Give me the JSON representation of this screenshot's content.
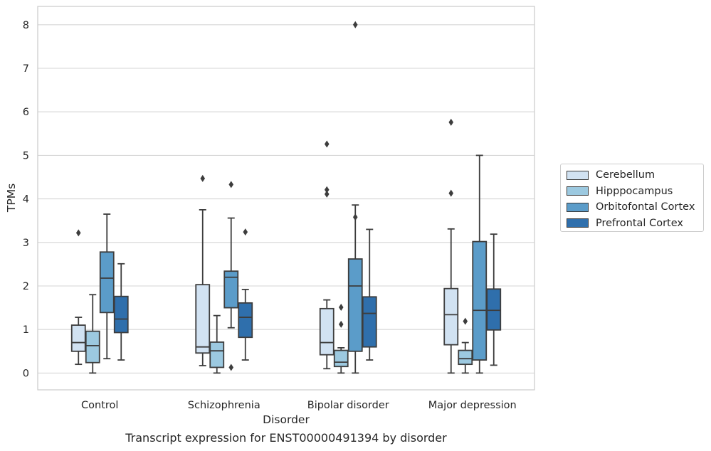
{
  "caption": "Transcript expression for ENST00000491394 by disorder",
  "chart_data": {
    "type": "box",
    "xlabel": "Disorder",
    "ylabel": "TPMs",
    "ylim": [
      -0.4,
      8.4
    ],
    "yticks": [
      0,
      1,
      2,
      3,
      4,
      5,
      6,
      7,
      8
    ],
    "grid": "horizontal",
    "legend_position": "right",
    "categories": [
      "Control",
      "Schizophrenia",
      "Bipolar disorder",
      "Major depression"
    ],
    "series": [
      {
        "name": "Cerebellum",
        "color": "#d1e2f2",
        "boxes": [
          {
            "whisker_low": 0.2,
            "q1": 0.5,
            "median": 0.7,
            "q3": 1.1,
            "whisker_high": 1.28,
            "outliers": [
              3.22
            ]
          },
          {
            "whisker_low": 0.17,
            "q1": 0.46,
            "median": 0.6,
            "q3": 2.03,
            "whisker_high": 3.75,
            "outliers": [
              4.47
            ]
          },
          {
            "whisker_low": 0.1,
            "q1": 0.42,
            "median": 0.7,
            "q3": 1.48,
            "whisker_high": 1.68,
            "outliers": [
              4.11,
              4.21,
              5.26
            ]
          },
          {
            "whisker_low": 0.0,
            "q1": 0.65,
            "median": 1.34,
            "q3": 1.94,
            "whisker_high": 3.31,
            "outliers": [
              4.13,
              5.76
            ]
          }
        ]
      },
      {
        "name": "Hipppocampus",
        "color": "#9cc9e0",
        "boxes": [
          {
            "whisker_low": 0.0,
            "q1": 0.24,
            "median": 0.63,
            "q3": 0.96,
            "whisker_high": 1.8,
            "outliers": []
          },
          {
            "whisker_low": 0.0,
            "q1": 0.13,
            "median": 0.51,
            "q3": 0.71,
            "whisker_high": 1.32,
            "outliers": []
          },
          {
            "whisker_low": 0.0,
            "q1": 0.15,
            "median": 0.25,
            "q3": 0.52,
            "whisker_high": 0.58,
            "outliers": [
              1.12,
              1.51
            ]
          },
          {
            "whisker_low": 0.0,
            "q1": 0.2,
            "median": 0.33,
            "q3": 0.52,
            "whisker_high": 0.7,
            "outliers": [
              1.19
            ]
          }
        ]
      },
      {
        "name": "Orbitofontal Cortex",
        "color": "#5b9cc9",
        "boxes": [
          {
            "whisker_low": 0.33,
            "q1": 1.39,
            "median": 2.18,
            "q3": 2.78,
            "whisker_high": 3.65,
            "outliers": []
          },
          {
            "whisker_low": 1.04,
            "q1": 1.5,
            "median": 2.2,
            "q3": 2.34,
            "whisker_high": 3.56,
            "outliers": [
              0.13,
              4.33
            ]
          },
          {
            "whisker_low": 0.0,
            "q1": 0.5,
            "median": 2.0,
            "q3": 2.62,
            "whisker_high": 3.86,
            "outliers": [
              3.58,
              8.0
            ]
          },
          {
            "whisker_low": 0.0,
            "q1": 0.3,
            "median": 1.44,
            "q3": 3.02,
            "whisker_high": 5.0,
            "outliers": []
          }
        ]
      },
      {
        "name": "Prefrontal Cortex",
        "color": "#2f6fac",
        "boxes": [
          {
            "whisker_low": 0.3,
            "q1": 0.93,
            "median": 1.24,
            "q3": 1.76,
            "whisker_high": 2.51,
            "outliers": []
          },
          {
            "whisker_low": 0.3,
            "q1": 0.82,
            "median": 1.28,
            "q3": 1.61,
            "whisker_high": 1.92,
            "outliers": [
              3.24
            ]
          },
          {
            "whisker_low": 0.3,
            "q1": 0.6,
            "median": 1.37,
            "q3": 1.75,
            "whisker_high": 3.3,
            "outliers": []
          },
          {
            "whisker_low": 0.18,
            "q1": 0.99,
            "median": 1.44,
            "q3": 1.93,
            "whisker_high": 3.19,
            "outliers": []
          }
        ]
      }
    ]
  }
}
